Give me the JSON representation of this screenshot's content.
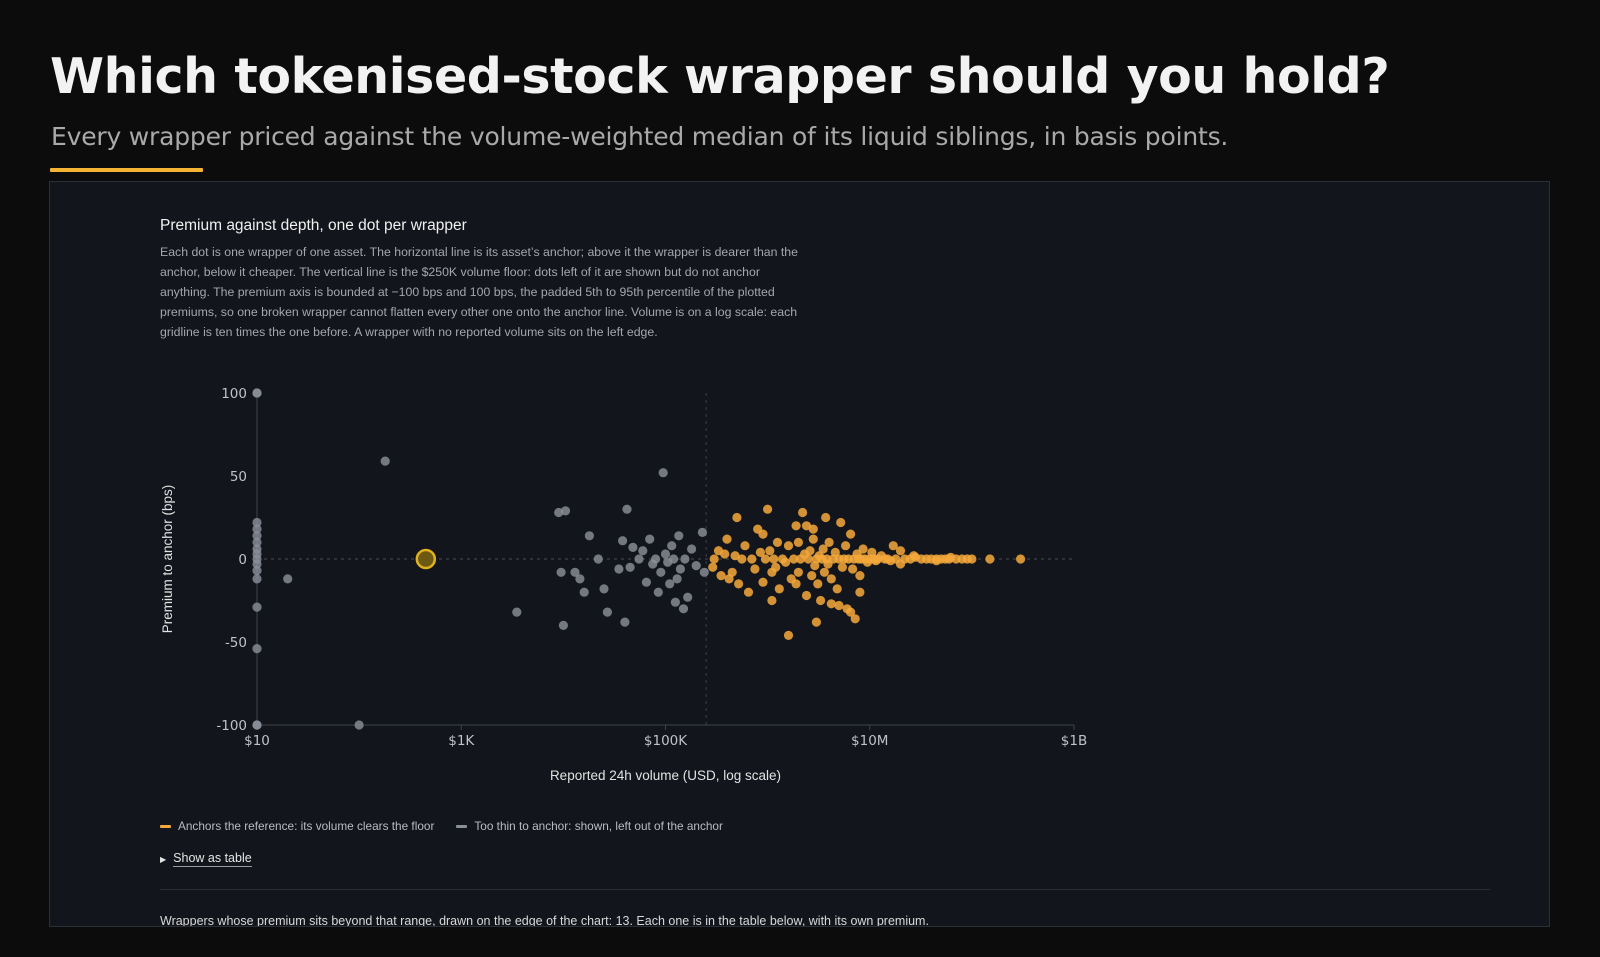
{
  "header": {
    "title": "Which tokenised-stock wrapper should you hold?",
    "subtitle": "Every wrapper priced against the volume-weighted median of its liquid siblings, in basis points."
  },
  "panel": {
    "title": "Premium against depth, one dot per wrapper",
    "description": "Each dot is one wrapper of one asset. The horizontal line is its asset’s anchor; above it the wrapper is dearer than the anchor, below it cheaper. The vertical line is the $250K volume floor: dots left of it are shown but do not anchor anything. The premium axis is bounded at −100 bps and 100 bps, the padded 5th to 95th percentile of the plotted premiums, so one broken wrapper cannot flatten every other one onto the anchor line. Volume is on a log scale: each gridline is ten times the one before. A wrapper with no reported volume sits on the left edge.",
    "show_table_label": "Show as table",
    "footnote": "Wrappers whose premium sits beyond that range, drawn on the edge of the chart: 13. Each one is in the table below, with its own premium."
  },
  "colors": {
    "anchor": "#f5a83a",
    "thin": "#8a8f98",
    "highlight": "#e0b21f",
    "accent": "#f5b333"
  },
  "chart_data": {
    "type": "scatter",
    "title": "Premium against depth, one dot per wrapper",
    "xlabel": "Reported 24h volume (USD, log scale)",
    "ylabel": "Premium to anchor (bps)",
    "x_scale": "log",
    "xlim": [
      10,
      1000000000
    ],
    "ylim": [
      -100,
      100
    ],
    "x_ticks": [
      {
        "value": 10,
        "label": "$10"
      },
      {
        "value": 1000,
        "label": "$1K"
      },
      {
        "value": 100000,
        "label": "$100K"
      },
      {
        "value": 10000000,
        "label": "$10M"
      },
      {
        "value": 1000000000,
        "label": "$1B"
      }
    ],
    "y_ticks": [
      {
        "value": 100,
        "label": "100"
      },
      {
        "value": 50,
        "label": "50"
      },
      {
        "value": 0,
        "label": "0"
      },
      {
        "value": -50,
        "label": "-50"
      },
      {
        "value": -100,
        "label": "-100"
      }
    ],
    "volume_floor": 250000,
    "anchor_line": 0,
    "legend": [
      {
        "name": "Anchors the reference: its volume clears the floor",
        "color": "#f5a83a"
      },
      {
        "name": "Too thin to anchor: shown, left out of the anchor",
        "color": "#8a8f98"
      }
    ],
    "highlight_point": {
      "x": 450,
      "y": 0
    },
    "series": [
      {
        "name": "Anchors the reference: its volume clears the floor",
        "color": "#f5a83a",
        "points": [
          [
            290000,
            -5
          ],
          [
            300000,
            0
          ],
          [
            330000,
            5
          ],
          [
            350000,
            -10
          ],
          [
            380000,
            3
          ],
          [
            400000,
            12
          ],
          [
            420000,
            -12
          ],
          [
            450000,
            -8
          ],
          [
            480000,
            2
          ],
          [
            500000,
            25
          ],
          [
            520000,
            -15
          ],
          [
            560000,
            0
          ],
          [
            600000,
            8
          ],
          [
            650000,
            -20
          ],
          [
            700000,
            0
          ],
          [
            750000,
            -6
          ],
          [
            800000,
            18
          ],
          [
            850000,
            4
          ],
          [
            900000,
            -14
          ],
          [
            950000,
            0
          ],
          [
            1000000,
            30
          ],
          [
            1050000,
            5
          ],
          [
            1100000,
            -25
          ],
          [
            1150000,
            0
          ],
          [
            1200000,
            -5
          ],
          [
            1250000,
            10
          ],
          [
            1300000,
            -18
          ],
          [
            1400000,
            0
          ],
          [
            1500000,
            -2
          ],
          [
            1600000,
            8
          ],
          [
            1700000,
            -12
          ],
          [
            1800000,
            0
          ],
          [
            1900000,
            20
          ],
          [
            2000000,
            -8
          ],
          [
            2100000,
            0
          ],
          [
            2200000,
            28
          ],
          [
            2300000,
            3
          ],
          [
            2400000,
            -22
          ],
          [
            2500000,
            0
          ],
          [
            2600000,
            5
          ],
          [
            2700000,
            -10
          ],
          [
            2800000,
            12
          ],
          [
            2900000,
            -4
          ],
          [
            3000000,
            0
          ],
          [
            3100000,
            -15
          ],
          [
            3200000,
            2
          ],
          [
            3300000,
            -25
          ],
          [
            3400000,
            0
          ],
          [
            3500000,
            6
          ],
          [
            3600000,
            -8
          ],
          [
            3700000,
            25
          ],
          [
            3800000,
            0
          ],
          [
            3900000,
            -3
          ],
          [
            4000000,
            10
          ],
          [
            4200000,
            -12
          ],
          [
            4400000,
            0
          ],
          [
            4600000,
            4
          ],
          [
            4800000,
            -18
          ],
          [
            5000000,
            0
          ],
          [
            5200000,
            22
          ],
          [
            5400000,
            -5
          ],
          [
            5600000,
            0
          ],
          [
            5800000,
            8
          ],
          [
            6000000,
            -30
          ],
          [
            6200000,
            0
          ],
          [
            6500000,
            15
          ],
          [
            6800000,
            -6
          ],
          [
            7000000,
            0
          ],
          [
            7200000,
            -36
          ],
          [
            7500000,
            3
          ],
          [
            7800000,
            0
          ],
          [
            8000000,
            -10
          ],
          [
            8300000,
            0
          ],
          [
            8600000,
            6
          ],
          [
            9000000,
            0
          ],
          [
            9500000,
            -2
          ],
          [
            10000000,
            0
          ],
          [
            10500000,
            4
          ],
          [
            11000000,
            0
          ],
          [
            11500000,
            -1
          ],
          [
            12000000,
            0
          ],
          [
            13000000,
            2
          ],
          [
            14000000,
            0
          ],
          [
            15000000,
            0
          ],
          [
            16000000,
            -1
          ],
          [
            18000000,
            0
          ],
          [
            20000000,
            5
          ],
          [
            22000000,
            0
          ],
          [
            25000000,
            0
          ],
          [
            28000000,
            1
          ],
          [
            32000000,
            0
          ],
          [
            36000000,
            0
          ],
          [
            40000000,
            0
          ],
          [
            45000000,
            -1
          ],
          [
            50000000,
            0
          ],
          [
            55000000,
            0
          ],
          [
            60000000,
            0
          ],
          [
            70000000,
            0
          ],
          [
            80000000,
            0
          ],
          [
            90000000,
            0
          ],
          [
            1600000,
            -46
          ],
          [
            4200000,
            -27
          ],
          [
            3000000,
            -38
          ],
          [
            6500000,
            -32
          ],
          [
            8000000,
            -20
          ],
          [
            2800000,
            18
          ],
          [
            5000000,
            -28
          ],
          [
            2400000,
            20
          ],
          [
            1900000,
            -15
          ],
          [
            2000000,
            10
          ],
          [
            17000000,
            8
          ],
          [
            20000000,
            -3
          ],
          [
            27000000,
            2
          ],
          [
            45000000,
            0
          ],
          [
            62000000,
            1
          ],
          [
            100000000,
            0
          ],
          [
            150000000,
            0
          ],
          [
            300000000,
            0
          ],
          [
            1100000,
            -8
          ],
          [
            900000,
            15
          ]
        ]
      },
      {
        "name": "Too thin to anchor: shown, left out of the anchor",
        "color": "#8a8f98",
        "points": [
          [
            10,
            100
          ],
          [
            10,
            100
          ],
          [
            10,
            22
          ],
          [
            10,
            18
          ],
          [
            10,
            14
          ],
          [
            10,
            10
          ],
          [
            10,
            6
          ],
          [
            10,
            3
          ],
          [
            10,
            0
          ],
          [
            10,
            -3
          ],
          [
            10,
            -7
          ],
          [
            10,
            -12
          ],
          [
            10,
            -29
          ],
          [
            10,
            -54
          ],
          [
            10,
            -100
          ],
          [
            10,
            -100
          ],
          [
            20,
            -12
          ],
          [
            100,
            -100
          ],
          [
            180,
            59
          ],
          [
            3500,
            -32
          ],
          [
            9000,
            28
          ],
          [
            10500,
            29
          ],
          [
            9500,
            -8
          ],
          [
            10000,
            -40
          ],
          [
            13000,
            -8
          ],
          [
            14500,
            -12
          ],
          [
            16000,
            -20
          ],
          [
            18000,
            14
          ],
          [
            22000,
            0
          ],
          [
            27000,
            -32
          ],
          [
            25000,
            -18
          ],
          [
            35000,
            -6
          ],
          [
            38000,
            11
          ],
          [
            40000,
            -38
          ],
          [
            42000,
            30
          ],
          [
            45000,
            -5
          ],
          [
            48000,
            7
          ],
          [
            55000,
            0
          ],
          [
            60000,
            5
          ],
          [
            65000,
            -14
          ],
          [
            70000,
            12
          ],
          [
            75000,
            -3
          ],
          [
            80000,
            0
          ],
          [
            85000,
            -20
          ],
          [
            90000,
            -8
          ],
          [
            95000,
            52
          ],
          [
            100000,
            3
          ],
          [
            105000,
            -2
          ],
          [
            110000,
            -15
          ],
          [
            115000,
            8
          ],
          [
            120000,
            0
          ],
          [
            125000,
            -26
          ],
          [
            130000,
            -12
          ],
          [
            135000,
            14
          ],
          [
            140000,
            -6
          ],
          [
            150000,
            -30
          ],
          [
            155000,
            0
          ],
          [
            165000,
            -23
          ],
          [
            180000,
            6
          ],
          [
            200000,
            -4
          ],
          [
            230000,
            16
          ],
          [
            240000,
            -8
          ]
        ]
      }
    ]
  }
}
